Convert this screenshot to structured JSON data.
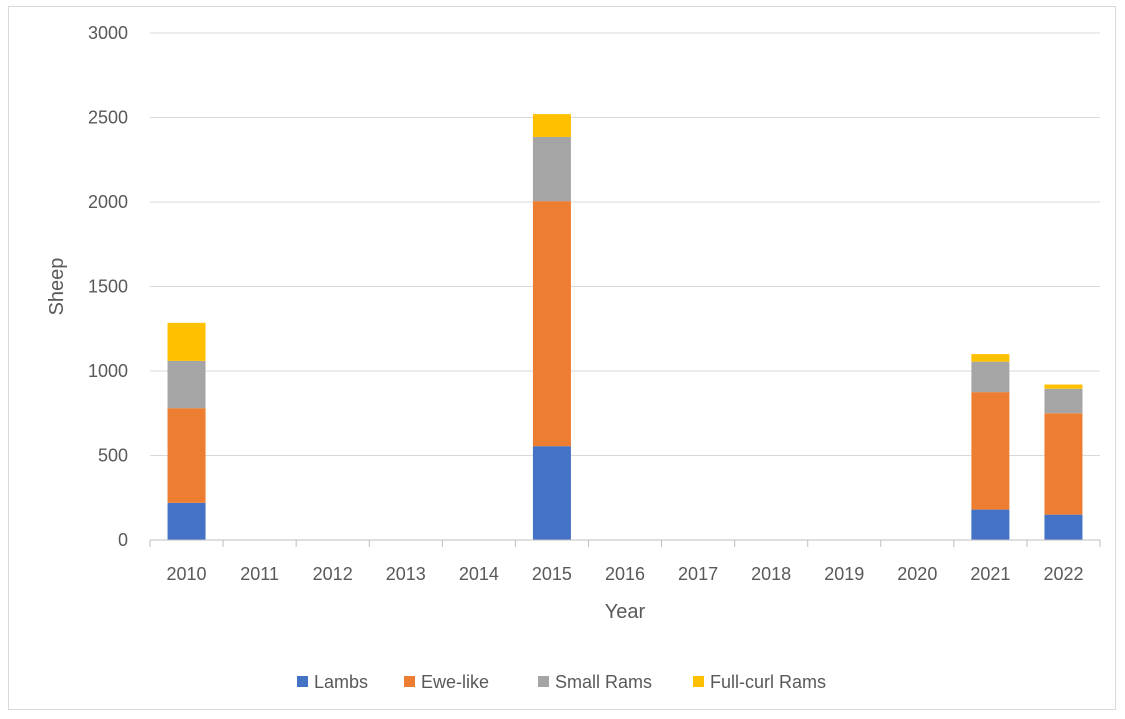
{
  "chart_data": {
    "type": "bar",
    "stacked": true,
    "title": "",
    "xlabel": "Year",
    "ylabel": "Sheep",
    "ylim": [
      0,
      3000
    ],
    "yticks": [
      0,
      500,
      1000,
      1500,
      2000,
      2500,
      3000
    ],
    "grid": true,
    "legend_position": "bottom",
    "categories": [
      "2010",
      "2011",
      "2012",
      "2013",
      "2014",
      "2015",
      "2016",
      "2017",
      "2018",
      "2019",
      "2020",
      "2021",
      "2022"
    ],
    "series": [
      {
        "name": "Lambs",
        "color": "#4472c4",
        "values": [
          220,
          0,
          0,
          0,
          0,
          555,
          0,
          0,
          0,
          0,
          0,
          180,
          150
        ]
      },
      {
        "name": "Ewe-like",
        "color": "#ed7d31",
        "values": [
          560,
          0,
          0,
          0,
          0,
          1450,
          0,
          0,
          0,
          0,
          0,
          695,
          600
        ]
      },
      {
        "name": "Small Rams",
        "color": "#a5a5a5",
        "values": [
          280,
          0,
          0,
          0,
          0,
          380,
          0,
          0,
          0,
          0,
          0,
          180,
          145
        ]
      },
      {
        "name": "Full-curl Rams",
        "color": "#ffc000",
        "values": [
          225,
          0,
          0,
          0,
          0,
          135,
          0,
          0,
          0,
          0,
          0,
          45,
          25
        ]
      }
    ]
  }
}
